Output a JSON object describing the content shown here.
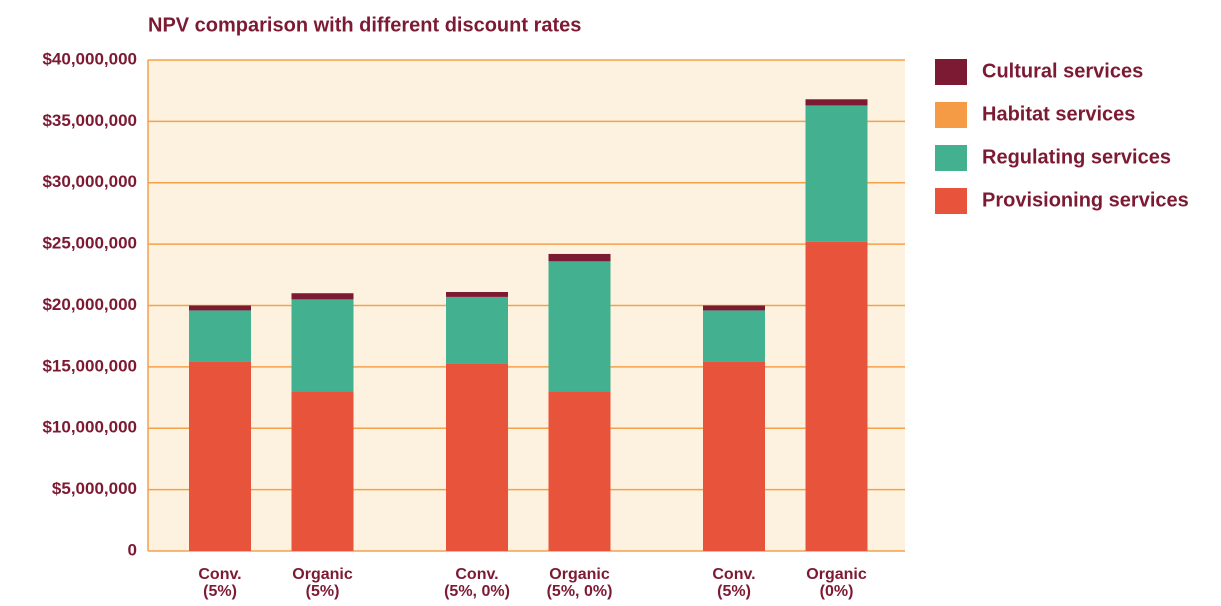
{
  "chart_data": {
    "type": "stacked_bar",
    "title": "NPV comparison with different discount rates",
    "categories": [
      "Conv.\n(5%)",
      "Organic\n(5%)",
      "Conv.\n(5%, 0%)",
      "Organic\n(5%, 0%)",
      "Conv.\n(5%)",
      "Organic\n(0%)"
    ],
    "series": [
      {
        "name": "Provisioning services",
        "color": "#e8533b",
        "values": [
          15400000,
          13000000,
          15300000,
          13000000,
          15400000,
          25200000
        ]
      },
      {
        "name": "Regulating services",
        "color": "#43b08f",
        "values": [
          4200000,
          7500000,
          5400000,
          10600000,
          4200000,
          11100000
        ]
      },
      {
        "name": "Habitat services",
        "color": "#f59a45",
        "values": [
          0,
          0,
          0,
          0,
          0,
          0
        ]
      },
      {
        "name": "Cultural services",
        "color": "#7d1a33",
        "values": [
          400000,
          500000,
          400000,
          600000,
          400000,
          500000
        ]
      }
    ],
    "ylim": [
      0,
      40000000
    ],
    "yticks": [
      0,
      {
        "value": 5000000,
        "label": "$5,000,000"
      },
      {
        "value": 10000000,
        "label": "$10,000,000"
      },
      {
        "value": 15000000,
        "label": "$15,000,000"
      },
      {
        "value": 20000000,
        "label": "$20,000,000"
      },
      {
        "value": 25000000,
        "label": "$25,000,000"
      },
      {
        "value": 30000000,
        "label": "$30,000,000"
      },
      {
        "value": 35000000,
        "label": "$35,000,000"
      },
      {
        "value": 40000000,
        "label": "$40,000,000"
      }
    ],
    "grid": true
  }
}
